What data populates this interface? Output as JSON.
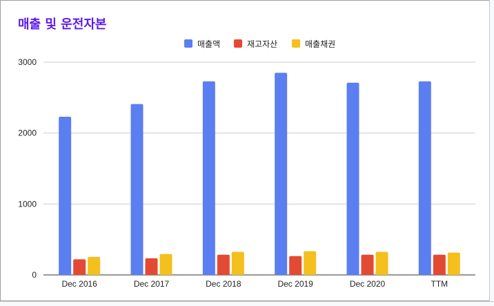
{
  "chart_data": {
    "type": "bar",
    "title": "매출 및 운전자본",
    "categories": [
      "Dec 2016",
      "Dec 2017",
      "Dec 2018",
      "Dec 2019",
      "Dec 2020",
      "TTM"
    ],
    "series": [
      {
        "name": "매출액",
        "color": "#5b7ff0",
        "values": [
          2230,
          2410,
          2730,
          2850,
          2710,
          2730
        ]
      },
      {
        "name": "재고자산",
        "color": "#e34a33",
        "values": [
          220,
          235,
          285,
          265,
          285,
          285
        ]
      },
      {
        "name": "매출채권",
        "color": "#f4c01e",
        "values": [
          255,
          295,
          325,
          335,
          325,
          315
        ]
      }
    ],
    "ylim": [
      0,
      3000
    ],
    "yticks": [
      0,
      1000,
      2000,
      3000
    ],
    "grid": true,
    "legend_position": "top-center"
  },
  "colors": {
    "title": "#5b19f0",
    "gridline": "#cccccc",
    "axis": "#333333"
  }
}
